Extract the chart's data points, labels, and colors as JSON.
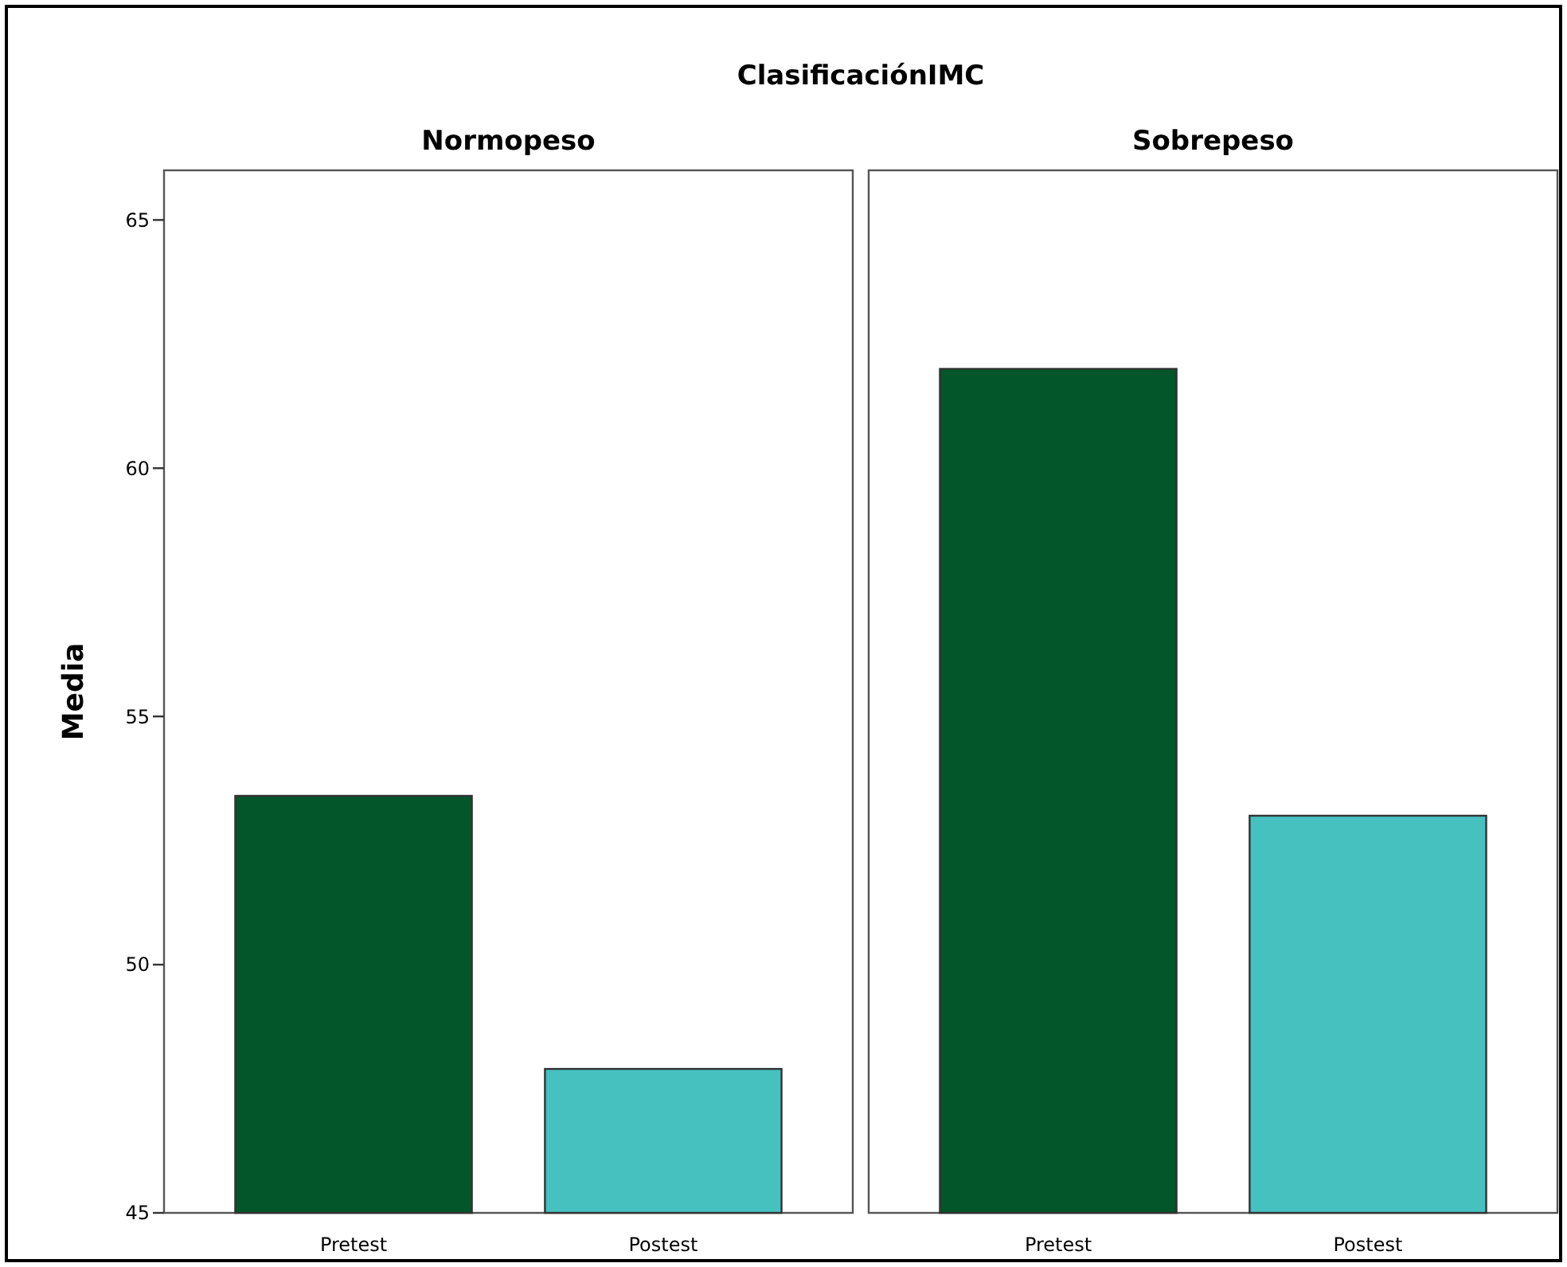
{
  "chart_data": [
    {
      "type": "bar",
      "title": "ClasificaciónIMC",
      "subtitle": "Normopeso",
      "ylabel": "Media",
      "categories": [
        "Pretest",
        "Postest"
      ],
      "values": [
        53.4,
        47.9
      ],
      "colors": [
        "#02562a",
        "#47c0c0"
      ],
      "ylim": [
        45,
        66
      ],
      "yticks": [
        45,
        50,
        55,
        60,
        65
      ],
      "grid": false
    },
    {
      "type": "bar",
      "subtitle": "Sobrepeso",
      "categories": [
        "Pretest",
        "Postest"
      ],
      "values": [
        62.0,
        53.0
      ],
      "colors": [
        "#02562a",
        "#47c0c0"
      ],
      "ylim": [
        45,
        66
      ],
      "grid": false,
      "tick_labels": "x"
    }
  ]
}
